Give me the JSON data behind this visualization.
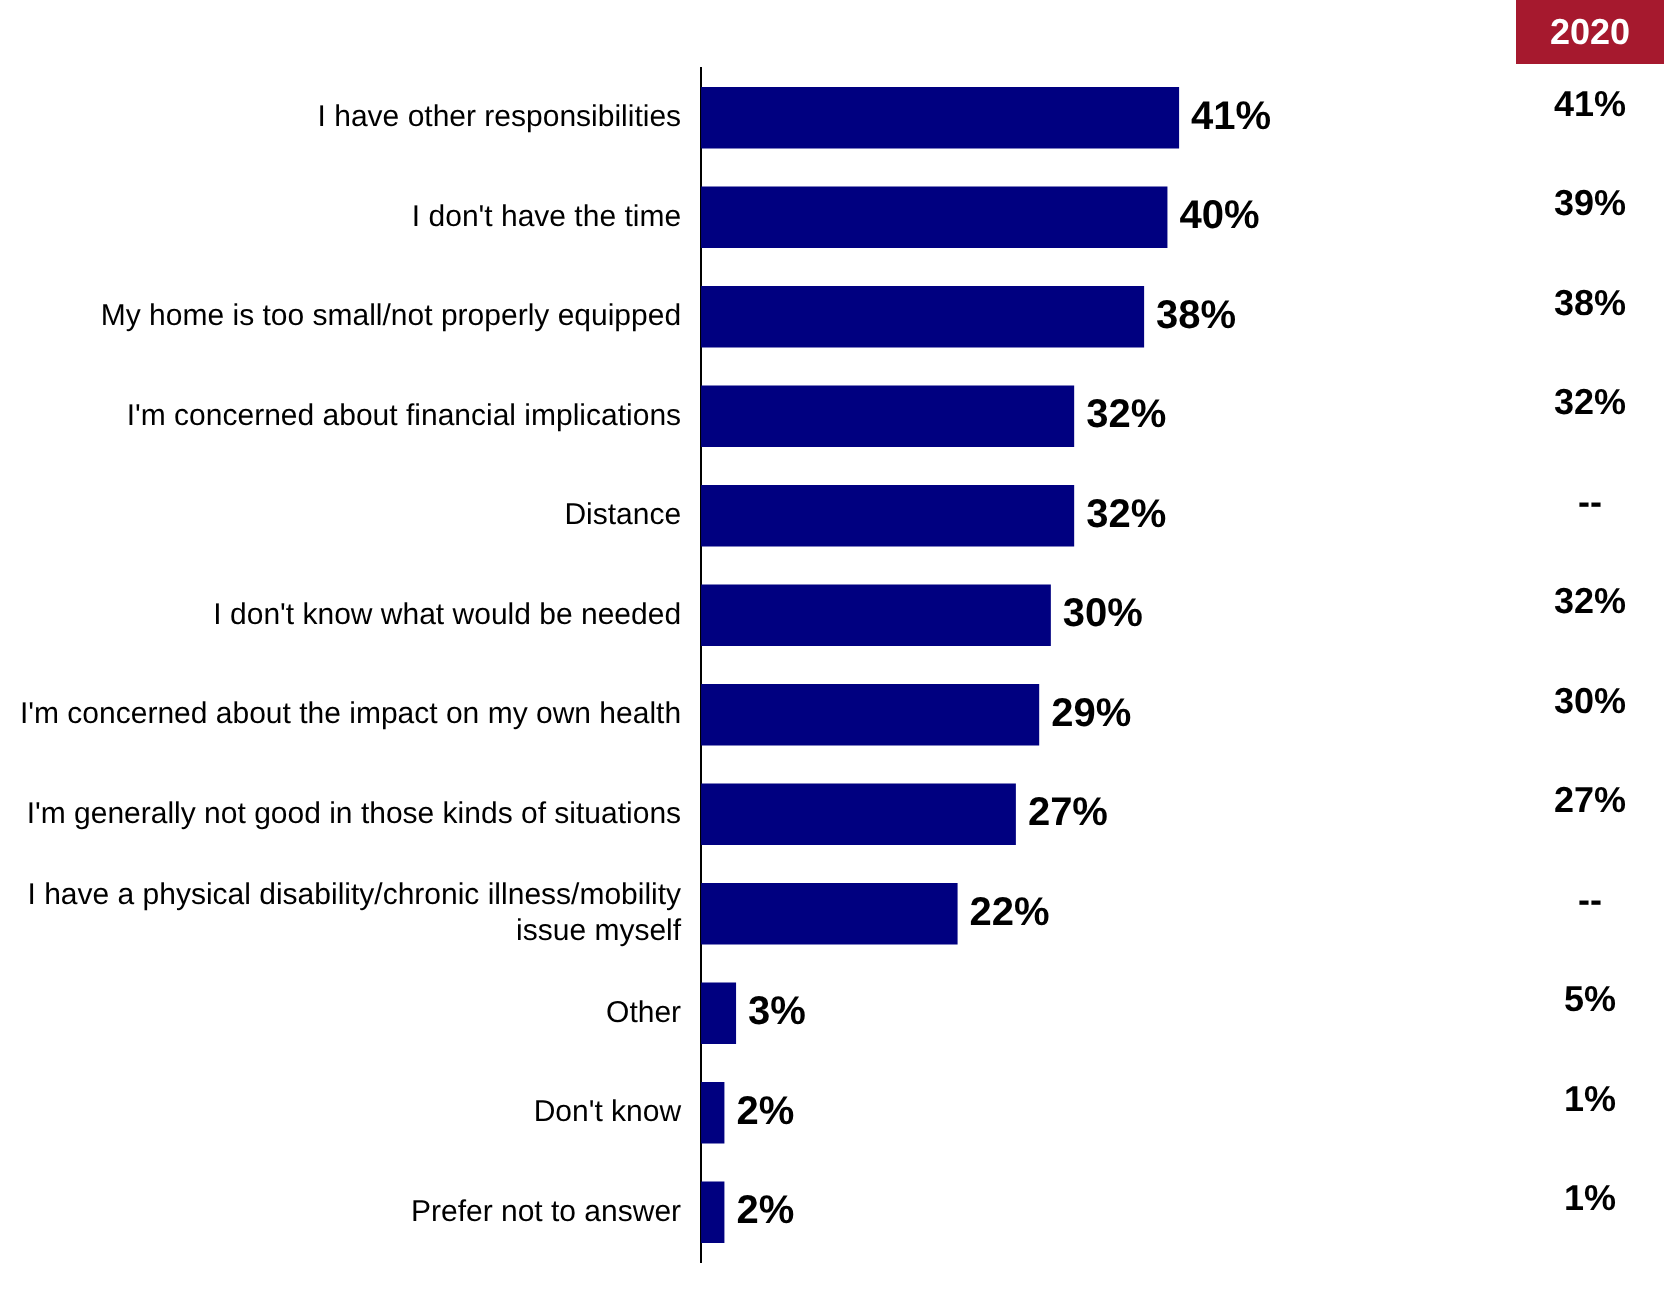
{
  "chart_data": {
    "type": "bar",
    "orientation": "horizontal",
    "data_labels": true,
    "legend": false,
    "categories": [
      "I have other responsibilities",
      "I don't have the time",
      "My home is too small/not properly equipped",
      "I'm concerned about financial implications",
      "Distance",
      "I don't know what would be needed",
      "I'm concerned about the impact on my own health",
      "I'm generally not good in those kinds of situations",
      "I have a physical disability/chronic illness/mobility issue myself",
      "Other",
      "Don't know",
      "Prefer not to answer"
    ],
    "series": [
      {
        "color": "#000080",
        "values": [
          41,
          40,
          38,
          32,
          32,
          30,
          29,
          27,
          22,
          3,
          2,
          2
        ],
        "value_labels": [
          "41%",
          "40%",
          "38%",
          "32%",
          "32%",
          "30%",
          "29%",
          "27%",
          "22%",
          "3%",
          "2%",
          "2%"
        ]
      }
    ],
    "annotations": [
      "2020",
      "41%",
      "39%",
      "38%",
      "32%",
      "--",
      "32%",
      "30%",
      "27%",
      "--",
      "5%",
      "1%",
      "1%"
    ]
  }
}
